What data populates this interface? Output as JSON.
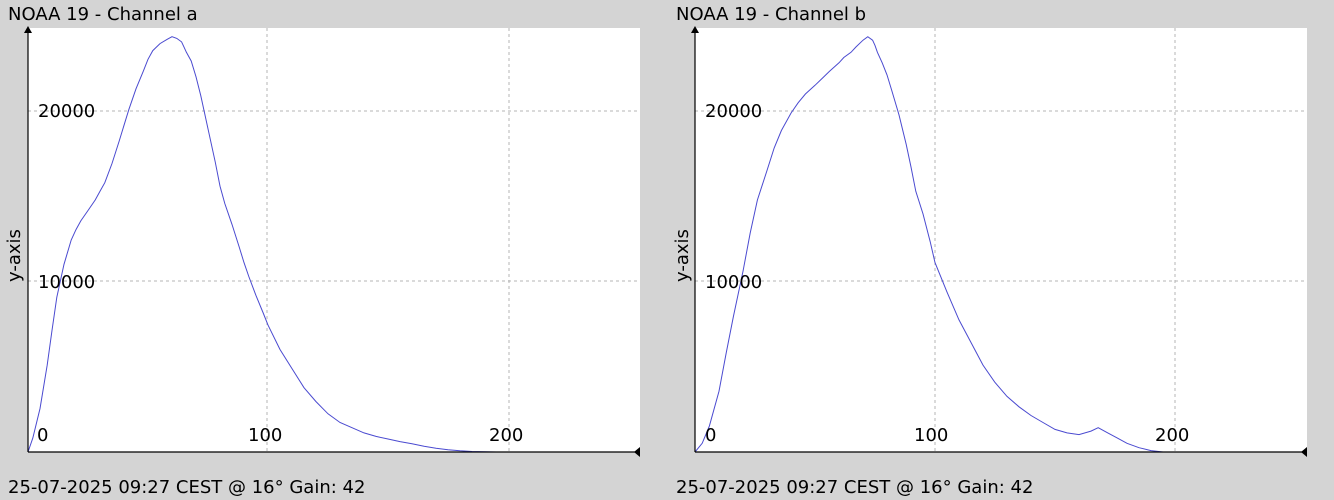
{
  "colors": {
    "background": "#d4d4d4",
    "plot_bg": "#ffffff",
    "series": "#4a4ad0",
    "grid": "#b4b4b4"
  },
  "chart_data": [
    {
      "type": "line",
      "title": "NOAA 19 - Channel a",
      "ylabel": "y-axis",
      "xlabel": "",
      "footer": "25-07-2025 09:27 CEST @ 16° Gain: 42",
      "xlim": [
        0,
        255
      ],
      "ylim": [
        0,
        24400
      ],
      "xticks": [
        0,
        100,
        200
      ],
      "yticks": [
        10000,
        20000
      ],
      "grid": true,
      "series": [
        {
          "x": [
            0,
            2,
            5,
            8,
            10,
            12,
            15,
            18,
            20,
            22,
            25,
            28,
            30,
            32,
            35,
            38,
            40,
            42,
            45,
            48,
            50,
            52,
            55,
            58,
            60,
            62,
            64,
            65,
            66,
            68,
            70,
            72,
            75,
            78,
            80,
            82,
            85,
            88,
            90,
            92,
            95,
            98,
            100,
            105,
            110,
            115,
            120,
            125,
            130,
            135,
            140,
            145,
            150,
            155,
            160,
            165,
            170,
            175,
            180,
            185,
            190,
            195
          ],
          "y": [
            0,
            800,
            2500,
            5000,
            7000,
            8900,
            10800,
            12200,
            12800,
            13300,
            13900,
            14500,
            15000,
            15500,
            16600,
            17900,
            18800,
            19700,
            20900,
            21900,
            22600,
            23100,
            23500,
            23750,
            23900,
            23800,
            23600,
            23300,
            23000,
            22500,
            21600,
            20500,
            18600,
            16700,
            15300,
            14300,
            13100,
            11800,
            10900,
            10100,
            9000,
            8000,
            7300,
            5900,
            4800,
            3700,
            2900,
            2200,
            1700,
            1400,
            1100,
            900,
            750,
            600,
            480,
            330,
            220,
            130,
            70,
            30,
            10,
            0
          ]
        }
      ]
    },
    {
      "type": "line",
      "title": "NOAA 19 - Channel b",
      "ylabel": "y-axis",
      "xlabel": "",
      "footer": "25-07-2025 09:27 CEST @ 16° Gain: 42",
      "xlim": [
        0,
        255
      ],
      "ylim": [
        0,
        24400
      ],
      "xticks": [
        0,
        100,
        200
      ],
      "yticks": [
        10000,
        20000
      ],
      "grid": true,
      "series": [
        {
          "x": [
            0,
            3,
            6,
            10,
            13,
            16,
            20,
            23,
            26,
            30,
            33,
            36,
            40,
            43,
            46,
            50,
            53,
            56,
            60,
            62,
            65,
            67,
            70,
            72,
            74,
            75,
            76,
            78,
            80,
            82,
            85,
            88,
            90,
            92,
            95,
            98,
            100,
            105,
            110,
            115,
            120,
            125,
            130,
            135,
            140,
            145,
            150,
            155,
            160,
            165,
            168,
            172,
            176,
            180,
            185,
            190,
            195
          ],
          "y": [
            0,
            500,
            1500,
            3500,
            5700,
            7800,
            10400,
            12600,
            14500,
            16200,
            17500,
            18500,
            19500,
            20100,
            20600,
            21100,
            21500,
            21900,
            22400,
            22700,
            23000,
            23300,
            23700,
            23900,
            23700,
            23400,
            23000,
            22400,
            21700,
            20800,
            19400,
            17700,
            16400,
            15000,
            13700,
            12100,
            10900,
            9200,
            7600,
            6300,
            5000,
            4000,
            3200,
            2600,
            2100,
            1700,
            1300,
            1100,
            1000,
            1200,
            1400,
            1100,
            800,
            500,
            250,
            80,
            0
          ]
        }
      ]
    }
  ]
}
